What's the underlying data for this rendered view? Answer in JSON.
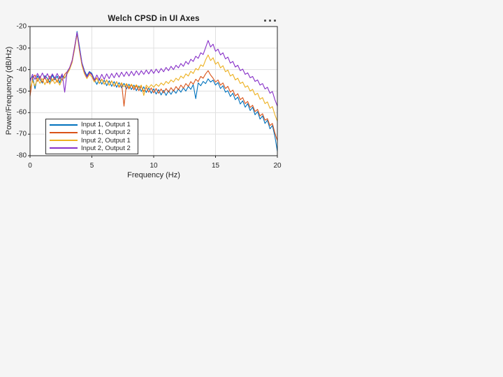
{
  "figure": {
    "background_color": "#f5f5f5",
    "plot_background_color": "#ffffff",
    "axis_color": "#262626",
    "grid_color": "#e0e0e0",
    "title_color": "#1a1a1a"
  },
  "toolbar": {
    "overflow_icon": "ellipsis-icon",
    "dot_count": 3
  },
  "chart_data": {
    "type": "line",
    "title": "Welch CPSD in UI Axes",
    "xlabel": "Frequency (Hz)",
    "ylabel": "Power/Frequency (dB/Hz)",
    "xlim": [
      0,
      20
    ],
    "ylim": [
      -80,
      -20
    ],
    "xticks": [
      0,
      5,
      10,
      15,
      20
    ],
    "yticks": [
      -80,
      -70,
      -60,
      -50,
      -40,
      -30,
      -20
    ],
    "grid": true,
    "legend_position": "southwest-inside",
    "x_step": 0.2,
    "series": [
      {
        "name": "Input 1, Output 1",
        "color": "#0072BD",
        "values": [
          -44.5,
          -43.2,
          -48.9,
          -42.9,
          -44.6,
          -46.3,
          -42.8,
          -44.1,
          -45.9,
          -42.5,
          -44.8,
          -43.0,
          -46.2,
          -42.6,
          -44.0,
          -41.5,
          -39.8,
          -36.5,
          -30.2,
          -22.3,
          -29.5,
          -36.8,
          -40.5,
          -42.8,
          -40.9,
          -41.8,
          -44.5,
          -46.9,
          -44.2,
          -46.8,
          -44.9,
          -47.5,
          -45.2,
          -47.8,
          -45.6,
          -48.2,
          -46.0,
          -48.5,
          -46.4,
          -49.0,
          -46.8,
          -49.3,
          -47.2,
          -49.8,
          -47.6,
          -50.2,
          -48.0,
          -50.6,
          -48.5,
          -51.0,
          -48.9,
          -51.4,
          -49.3,
          -51.8,
          -49.6,
          -52.0,
          -49.8,
          -51.5,
          -49.5,
          -51.0,
          -49.0,
          -50.5,
          -48.5,
          -50.0,
          -47.8,
          -49.2,
          -47.0,
          -53.5,
          -46.2,
          -47.5,
          -45.5,
          -46.5,
          -44.3,
          -45.8,
          -44.9,
          -47.2,
          -46.0,
          -48.8,
          -47.5,
          -50.5,
          -49.8,
          -52.5,
          -51.0,
          -54.0,
          -52.8,
          -56.0,
          -54.5,
          -57.5,
          -55.8,
          -59.0,
          -57.5,
          -61.0,
          -59.5,
          -63.0,
          -61.5,
          -65.0,
          -63.5,
          -67.5,
          -66.0,
          -71.0,
          -78.0
        ]
      },
      {
        "name": "Input 1, Output 2",
        "color": "#D95319",
        "values": [
          -52.5,
          -44.0,
          -42.5,
          -45.5,
          -43.1,
          -45.9,
          -43.4,
          -46.2,
          -43.0,
          -45.3,
          -43.6,
          -45.9,
          -43.2,
          -45.0,
          -42.2,
          -41.0,
          -39.2,
          -35.8,
          -29.5,
          -23.0,
          -30.8,
          -37.5,
          -41.2,
          -43.5,
          -41.5,
          -42.5,
          -45.2,
          -43.8,
          -46.5,
          -44.4,
          -46.9,
          -44.8,
          -47.3,
          -45.2,
          -47.8,
          -45.6,
          -48.2,
          -46.1,
          -57.0,
          -46.5,
          -49.0,
          -47.0,
          -49.4,
          -47.4,
          -49.8,
          -47.8,
          -50.2,
          -48.2,
          -50.5,
          -48.5,
          -50.8,
          -48.8,
          -51.0,
          -49.0,
          -50.8,
          -48.8,
          -50.5,
          -48.4,
          -50.0,
          -47.9,
          -49.4,
          -47.2,
          -48.6,
          -46.5,
          -47.8,
          -45.6,
          -46.8,
          -44.5,
          -45.6,
          -43.2,
          -44.0,
          -42.0,
          -40.5,
          -42.5,
          -44.0,
          -45.8,
          -44.8,
          -47.2,
          -46.2,
          -48.8,
          -47.8,
          -50.5,
          -49.5,
          -52.2,
          -51.2,
          -54.0,
          -53.0,
          -55.8,
          -54.8,
          -57.6,
          -56.6,
          -59.5,
          -58.5,
          -61.5,
          -60.5,
          -63.5,
          -62.8,
          -66.0,
          -65.0,
          -69.5,
          -73.0
        ]
      },
      {
        "name": "Input 2, Output 1",
        "color": "#EDB120",
        "values": [
          -49.0,
          -45.2,
          -47.6,
          -44.0,
          -46.4,
          -44.2,
          -47.0,
          -44.6,
          -46.8,
          -44.3,
          -46.5,
          -44.8,
          -47.2,
          -44.5,
          -43.6,
          -42.0,
          -40.0,
          -36.8,
          -30.8,
          -23.5,
          -31.5,
          -38.2,
          -42.0,
          -44.2,
          -42.2,
          -43.4,
          -45.8,
          -44.0,
          -46.4,
          -44.6,
          -46.8,
          -45.0,
          -47.2,
          -45.4,
          -47.5,
          -45.8,
          -47.8,
          -46.2,
          -48.0,
          -46.5,
          -48.2,
          -46.8,
          -48.4,
          -47.0,
          -48.5,
          -47.2,
          -52.0,
          -47.2,
          -48.5,
          -47.0,
          -48.2,
          -46.8,
          -47.8,
          -46.2,
          -47.2,
          -45.5,
          -46.5,
          -44.8,
          -45.8,
          -44.0,
          -45.0,
          -43.0,
          -44.0,
          -42.0,
          -43.0,
          -40.8,
          -41.8,
          -39.5,
          -40.2,
          -37.8,
          -38.5,
          -35.5,
          -33.2,
          -35.8,
          -34.5,
          -37.5,
          -36.5,
          -39.2,
          -38.2,
          -41.0,
          -40.2,
          -43.0,
          -42.2,
          -44.8,
          -44.0,
          -46.5,
          -45.8,
          -48.2,
          -47.5,
          -50.0,
          -49.2,
          -51.8,
          -51.0,
          -53.8,
          -53.0,
          -55.8,
          -55.0,
          -58.0,
          -57.2,
          -61.0,
          -64.0
        ]
      },
      {
        "name": "Input 2, Output 2",
        "color": "#8730C8",
        "values": [
          -45.5,
          -42.2,
          -44.6,
          -41.8,
          -43.9,
          -41.6,
          -44.2,
          -41.9,
          -44.5,
          -42.0,
          -44.0,
          -41.8,
          -44.3,
          -42.0,
          -50.5,
          -41.0,
          -39.2,
          -36.0,
          -29.8,
          -22.8,
          -30.2,
          -37.0,
          -41.0,
          -43.5,
          -41.2,
          -42.2,
          -45.0,
          -42.5,
          -44.8,
          -42.2,
          -44.5,
          -42.0,
          -44.2,
          -41.8,
          -43.8,
          -41.5,
          -43.5,
          -41.2,
          -43.2,
          -41.0,
          -43.0,
          -40.8,
          -42.8,
          -40.6,
          -42.5,
          -40.5,
          -42.2,
          -40.2,
          -42.0,
          -40.0,
          -41.8,
          -39.8,
          -41.5,
          -39.5,
          -41.0,
          -39.0,
          -40.5,
          -38.5,
          -40.0,
          -38.0,
          -39.2,
          -37.2,
          -38.5,
          -36.2,
          -37.5,
          -35.2,
          -36.2,
          -33.8,
          -34.8,
          -32.2,
          -33.0,
          -29.8,
          -26.5,
          -29.5,
          -28.2,
          -31.5,
          -30.5,
          -33.2,
          -32.2,
          -35.0,
          -34.2,
          -37.0,
          -36.2,
          -38.8,
          -38.0,
          -40.5,
          -39.8,
          -42.2,
          -41.5,
          -43.8,
          -43.2,
          -45.5,
          -44.8,
          -47.2,
          -46.5,
          -49.0,
          -48.2,
          -51.0,
          -50.2,
          -54.0,
          -57.0
        ]
      }
    ]
  }
}
